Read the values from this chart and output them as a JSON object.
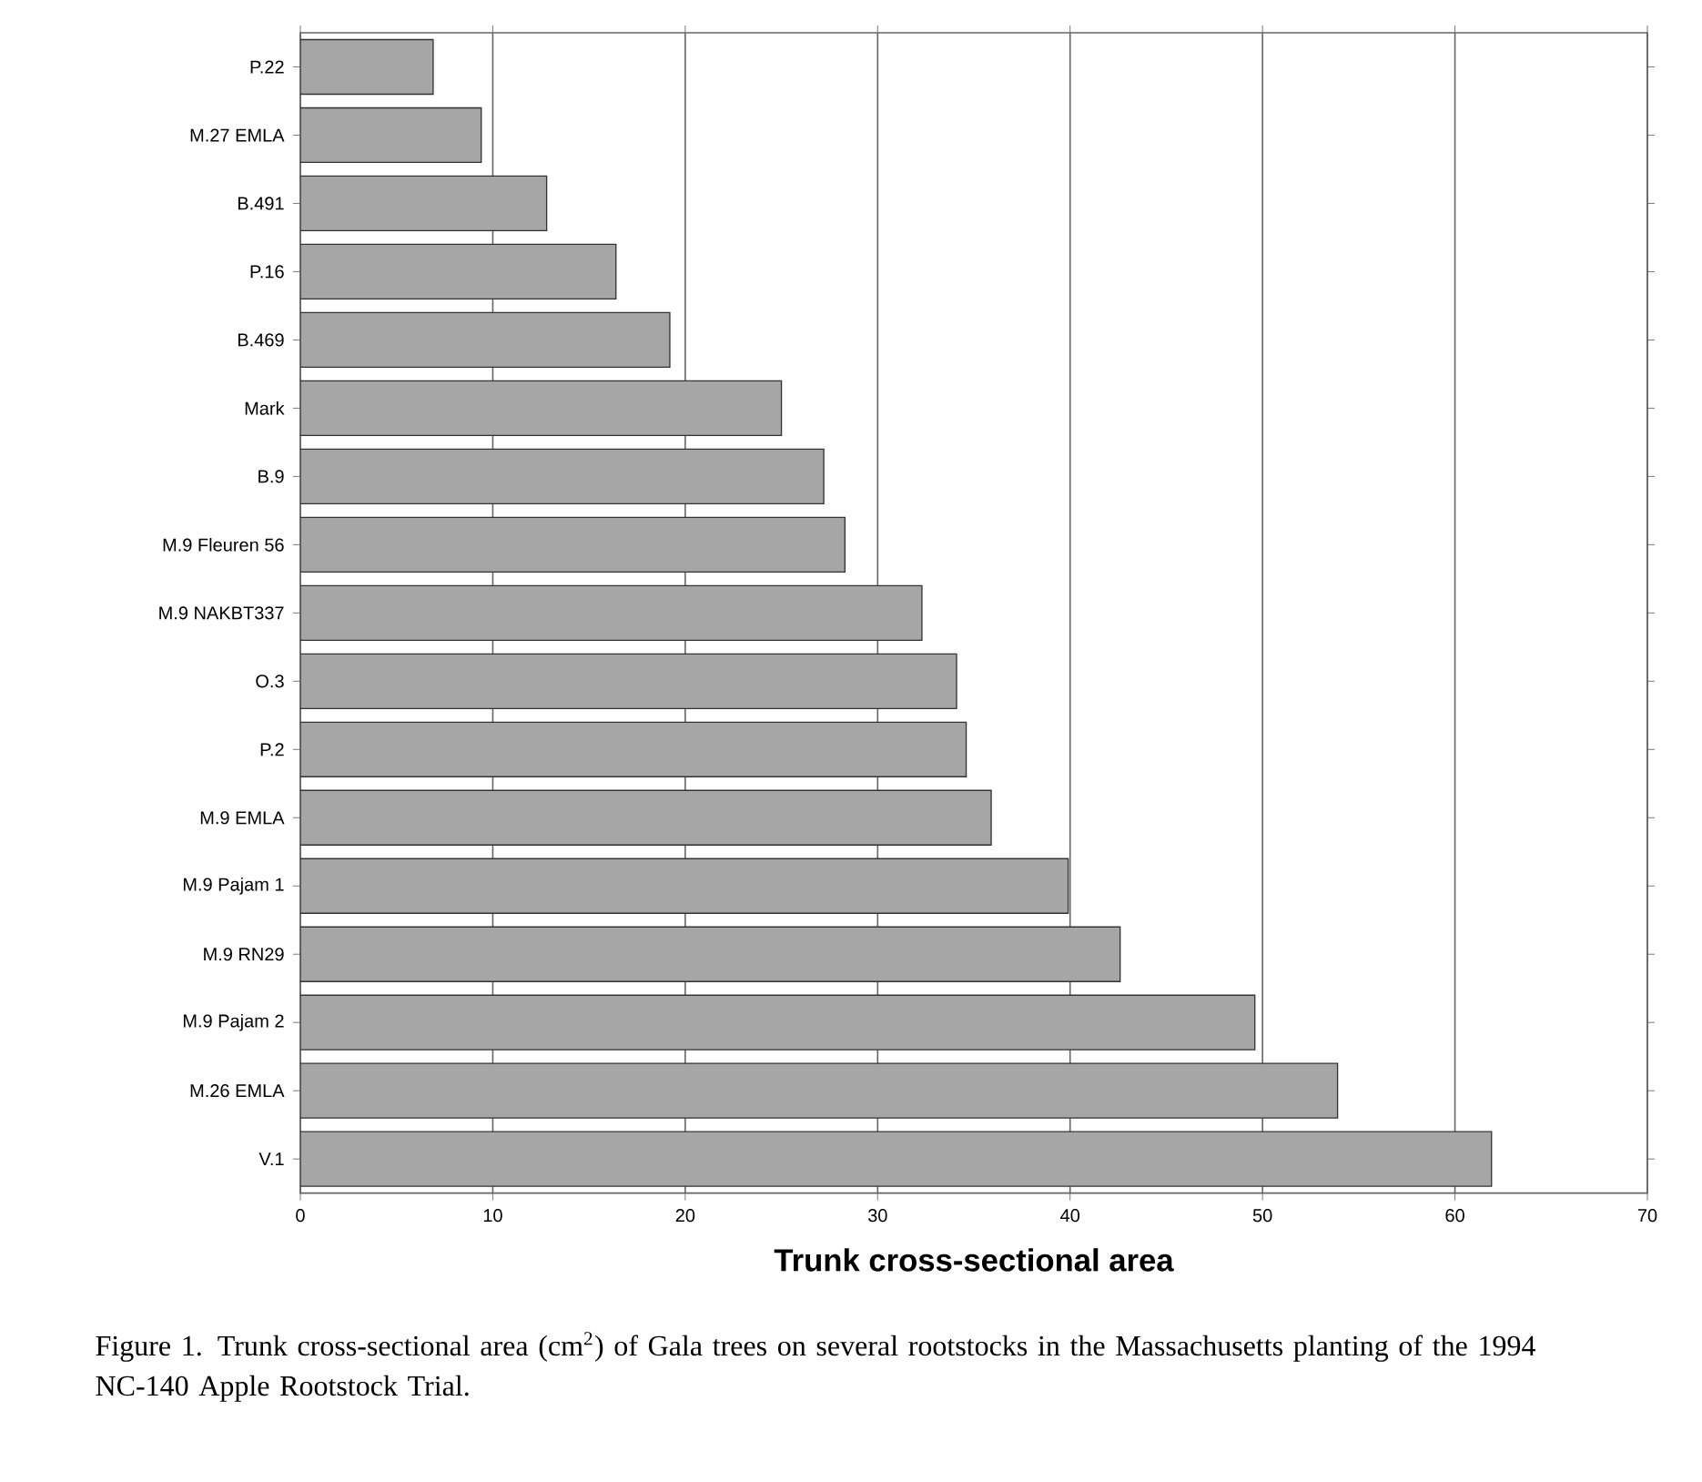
{
  "chart_data": {
    "type": "bar",
    "orientation": "horizontal",
    "xlabel": "Trunk cross-sectional area",
    "annotations": [
      "Figure 1.  Trunk cross-sectional area (cm$^{2}$) of Gala trees on several rootstocks in the Massachusetts planting of the 1994 NC-140 Apple Rootstock Trial."
    ],
    "categories": [
      "P.22",
      "M.27 EMLA",
      "B.491",
      "P.16",
      "B.469",
      "Mark",
      "B.9",
      "M.9 Fleuren 56",
      "M.9 NAKBT337",
      "O.3",
      "P.2",
      "M.9 EMLA",
      "M.9 Pajam 1",
      "M.9 RN29",
      "M.9 Pajam 2",
      "M.26 EMLA",
      "V.1"
    ],
    "values": [
      6.9,
      9.4,
      12.8,
      16.4,
      19.2,
      25.0,
      27.2,
      28.3,
      32.3,
      34.1,
      34.6,
      35.9,
      39.9,
      42.6,
      49.6,
      53.9,
      61.9
    ],
    "color": "#a6a6a6",
    "xlim": [
      0,
      70
    ],
    "xticks": [
      0,
      10,
      20,
      30,
      40,
      50,
      60,
      70
    ],
    "grid": "x"
  }
}
